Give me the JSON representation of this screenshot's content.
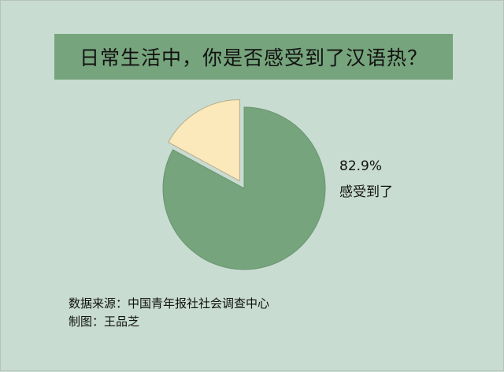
{
  "chart_data": {
    "type": "pie",
    "title": "日常生活中，你是否感受到了汉语热？",
    "slices": [
      {
        "label": "感受到了",
        "value": 82.9,
        "value_label": "82.9%",
        "color": "#76a47c"
      },
      {
        "label": "",
        "value": 17.1,
        "color": "#fbe9bb",
        "exploded": true
      }
    ],
    "start": "top",
    "direction": "clockwise"
  },
  "footer": {
    "source": "数据来源：中国青年报社社会调查中心",
    "author": "制图：王品芝"
  },
  "colors": {
    "background": "#c8dcd1",
    "banner": "#76a47c"
  }
}
